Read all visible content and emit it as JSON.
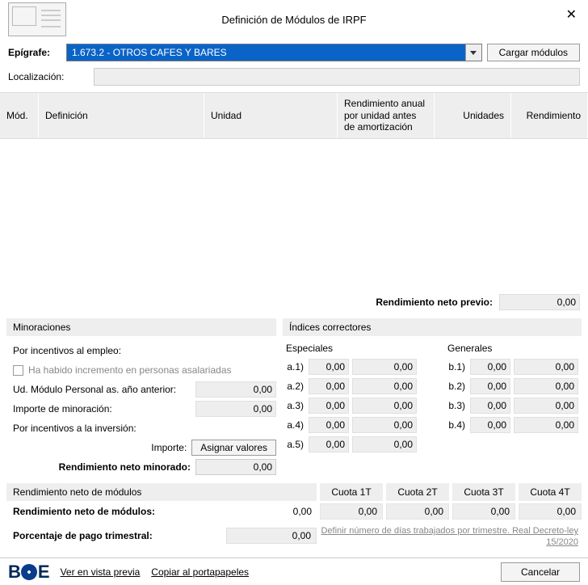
{
  "title": "Definición de Módulos de IRPF",
  "close": "✕",
  "epigrafe": {
    "label": "Epígrafe:",
    "value": "1.673.2 - OTROS CAFES Y BARES",
    "button": "Cargar módulos"
  },
  "localizacion": {
    "label": "Localización:",
    "value": ""
  },
  "table": {
    "headers": {
      "mod": "Mód.",
      "def": "Definición",
      "uni": "Unidad",
      "ren": "Rendimiento anual por unidad antes de amortización",
      "uds": "Unidades",
      "rto": "Rendimiento"
    }
  },
  "previo": {
    "label": "Rendimiento neto previo:",
    "value": "0,00"
  },
  "minoraciones": {
    "title": "Minoraciones",
    "empleo": "Por incentivos al empleo:",
    "chk": "Ha habido incremento en personas asalariadas",
    "ud": {
      "label": "Ud. Módulo Personal as. año anterior:",
      "value": "0,00"
    },
    "imp": {
      "label": "Importe de minoración:",
      "value": "0,00"
    },
    "inversion": "Por incentivos a la inversión:",
    "importe_lbl": "Importe:",
    "asignar": "Asignar valores",
    "minorado": {
      "label": "Rendimiento neto minorado:",
      "value": "0,00"
    }
  },
  "indices": {
    "title": "Índices correctores",
    "especiales": "Especiales",
    "generales": "Generales",
    "esp": {
      "a1": {
        "l": "a.1)",
        "v1": "0,00",
        "v2": "0,00"
      },
      "a2": {
        "l": "a.2)",
        "v1": "0,00",
        "v2": "0,00"
      },
      "a3": {
        "l": "a.3)",
        "v1": "0,00",
        "v2": "0,00"
      },
      "a4": {
        "l": "a.4)",
        "v1": "0,00",
        "v2": "0,00"
      },
      "a5": {
        "l": "a.5)",
        "v1": "0,00",
        "v2": "0,00"
      }
    },
    "gen": {
      "b1": {
        "l": "b.1)",
        "v1": "0,00",
        "v2": "0,00"
      },
      "b2": {
        "l": "b.2)",
        "v1": "0,00",
        "v2": "0,00"
      },
      "b3": {
        "l": "b.3)",
        "v1": "0,00",
        "v2": "0,00"
      },
      "b4": {
        "l": "b.4)",
        "v1": "0,00",
        "v2": "0,00"
      }
    }
  },
  "modulos": {
    "title": "Rendimiento neto de módulos",
    "c1": "Cuota 1T",
    "c2": "Cuota 2T",
    "c3": "Cuota 3T",
    "c4": "Cuota 4T",
    "rnm": {
      "label": "Rendimiento neto de módulos:",
      "value": "0,00",
      "q1": "0,00",
      "q2": "0,00",
      "q3": "0,00",
      "q4": "0,00"
    },
    "ppt": {
      "label": "Porcentaje de pago trimestral:",
      "value": "0,00"
    },
    "link": "Definir número de días trabajados por trimestre. Real Decreto-ley 15/2020"
  },
  "footer": {
    "preview": "Ver en vista previa",
    "copy": "Copiar al portapapeles",
    "cancel": "Cancelar"
  }
}
